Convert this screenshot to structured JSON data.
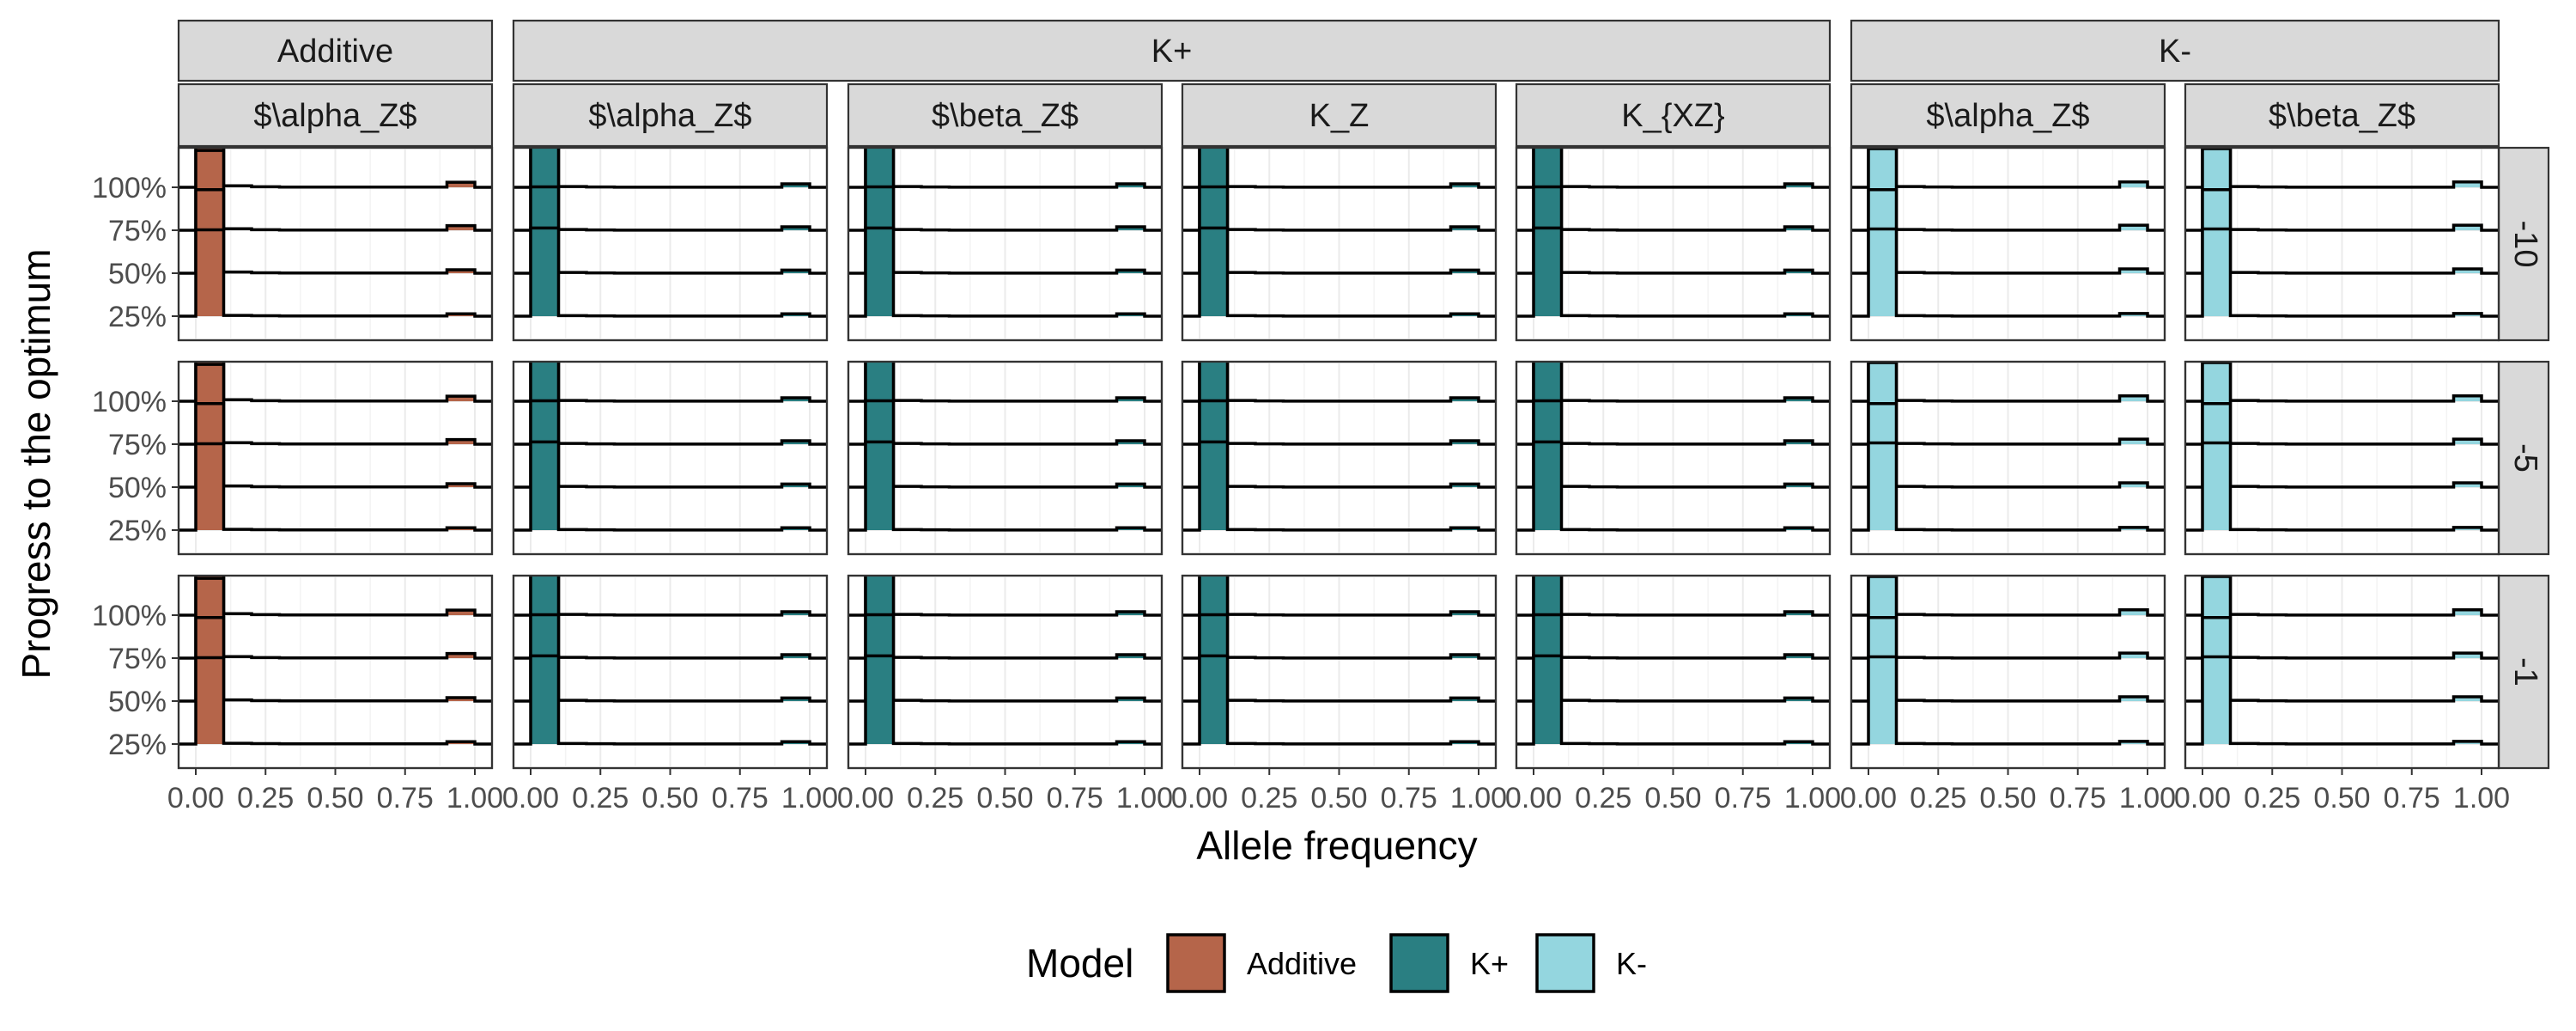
{
  "chart_data": {
    "type": "ridgeline-histogram",
    "xlabel": "Allele frequency",
    "ylabel": "Progress to the optimum",
    "x_ticks": [
      "0.00",
      "0.25",
      "0.50",
      "0.75",
      "1.00"
    ],
    "x_tick_values": [
      0,
      0.25,
      0.5,
      0.75,
      1.0
    ],
    "y_ticks": [
      "25%",
      "50%",
      "75%",
      "100%"
    ],
    "y_tick_values": [
      25,
      50,
      75,
      100
    ],
    "bins": [
      0,
      0.1,
      0.2,
      0.3,
      0.4,
      0.5,
      0.6,
      0.7,
      0.8,
      0.9,
      1.0
    ],
    "model_groups": [
      {
        "label": "Additive",
        "model": "Additive"
      },
      {
        "label": "K+",
        "model": "K+"
      },
      {
        "label": "K-",
        "model": "K-"
      }
    ],
    "columns": [
      {
        "group": "Additive",
        "param": "$\\alpha_Z$",
        "model": "Additive"
      },
      {
        "group": "K+",
        "param": "$\\alpha_Z$",
        "model": "K+"
      },
      {
        "group": "K+",
        "param": "$\\beta_Z$",
        "model": "K+"
      },
      {
        "group": "K+",
        "param": "K_Z",
        "model": "K+"
      },
      {
        "group": "K+",
        "param": "K_{XZ}",
        "model": "K+"
      },
      {
        "group": "K-",
        "param": "$\\alpha_Z$",
        "model": "K-"
      },
      {
        "group": "K-",
        "param": "$\\beta_Z$",
        "model": "K-"
      }
    ],
    "rows": [
      "-10",
      "-5",
      "-1"
    ],
    "series_profiles": {
      "Additive": {
        "25%": [
          0.93,
          0.02,
          0.01,
          0.005,
          0.005,
          0.005,
          0.005,
          0.005,
          0.005,
          0.06
        ],
        "50%": [
          0.9,
          0.03,
          0.01,
          0.005,
          0.005,
          0.005,
          0.005,
          0.005,
          0.005,
          0.09
        ],
        "75%": [
          0.86,
          0.04,
          0.015,
          0.005,
          0.005,
          0.005,
          0.005,
          0.005,
          0.005,
          0.12
        ],
        "100%": [
          0.84,
          0.04,
          0.015,
          0.005,
          0.005,
          0.005,
          0.005,
          0.005,
          0.005,
          0.13
        ]
      },
      "K+": {
        "25%": [
          0.95,
          0.015,
          0.008,
          0.004,
          0.004,
          0.004,
          0.004,
          0.004,
          0.004,
          0.06
        ],
        "50%": [
          0.93,
          0.02,
          0.008,
          0.004,
          0.004,
          0.004,
          0.004,
          0.004,
          0.004,
          0.08
        ],
        "75%": [
          0.92,
          0.02,
          0.008,
          0.004,
          0.004,
          0.004,
          0.004,
          0.004,
          0.004,
          0.09
        ],
        "100%": [
          0.92,
          0.02,
          0.008,
          0.004,
          0.004,
          0.004,
          0.004,
          0.004,
          0.004,
          0.09
        ]
      },
      "K-": {
        "25%": [
          0.94,
          0.015,
          0.008,
          0.004,
          0.004,
          0.004,
          0.004,
          0.004,
          0.004,
          0.07
        ],
        "50%": [
          0.9,
          0.02,
          0.008,
          0.004,
          0.004,
          0.004,
          0.004,
          0.004,
          0.004,
          0.11
        ],
        "75%": [
          0.88,
          0.02,
          0.008,
          0.004,
          0.004,
          0.004,
          0.004,
          0.004,
          0.004,
          0.13
        ],
        "100%": [
          0.86,
          0.02,
          0.008,
          0.004,
          0.004,
          0.004,
          0.004,
          0.004,
          0.004,
          0.14
        ]
      }
    },
    "legend": {
      "title": "Model",
      "position": "bottom",
      "entries": [
        {
          "label": "Additive",
          "color": "#b5654a"
        },
        {
          "label": "K+",
          "color": "#2a7f82"
        },
        {
          "label": "K-",
          "color": "#94d6df"
        }
      ]
    },
    "grid": true
  }
}
